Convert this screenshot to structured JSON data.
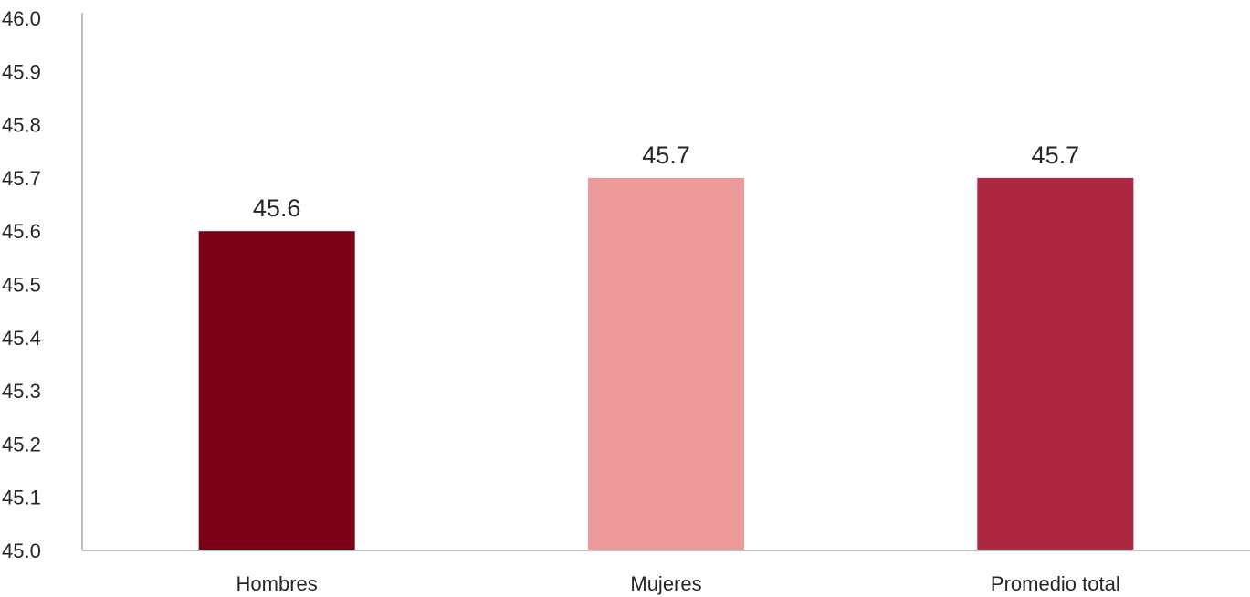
{
  "chart_data": {
    "type": "bar",
    "title": "",
    "xlabel": "",
    "ylabel": "",
    "categories": [
      "Hombres",
      "Mujeres",
      "Promedio total"
    ],
    "values": [
      45.6,
      45.7,
      45.7
    ],
    "data_labels": [
      "45.6",
      "45.7",
      "45.7"
    ],
    "bar_colors": [
      "#7a0016",
      "#ec9a9a",
      "#ad2642"
    ],
    "ylim": [
      45.0,
      46.0
    ],
    "yticks": [
      45.0,
      45.1,
      45.2,
      45.3,
      45.4,
      45.5,
      45.6,
      45.7,
      45.8,
      45.9,
      46.0
    ],
    "ytick_labels": [
      "45.0",
      "45.1",
      "45.2",
      "45.3",
      "45.4",
      "45.5",
      "45.6",
      "45.7",
      "45.8",
      "45.9",
      "46.0"
    ],
    "grid": false,
    "legend": "none",
    "axis_color": "#bfbfbf",
    "text_color": "#262626"
  }
}
